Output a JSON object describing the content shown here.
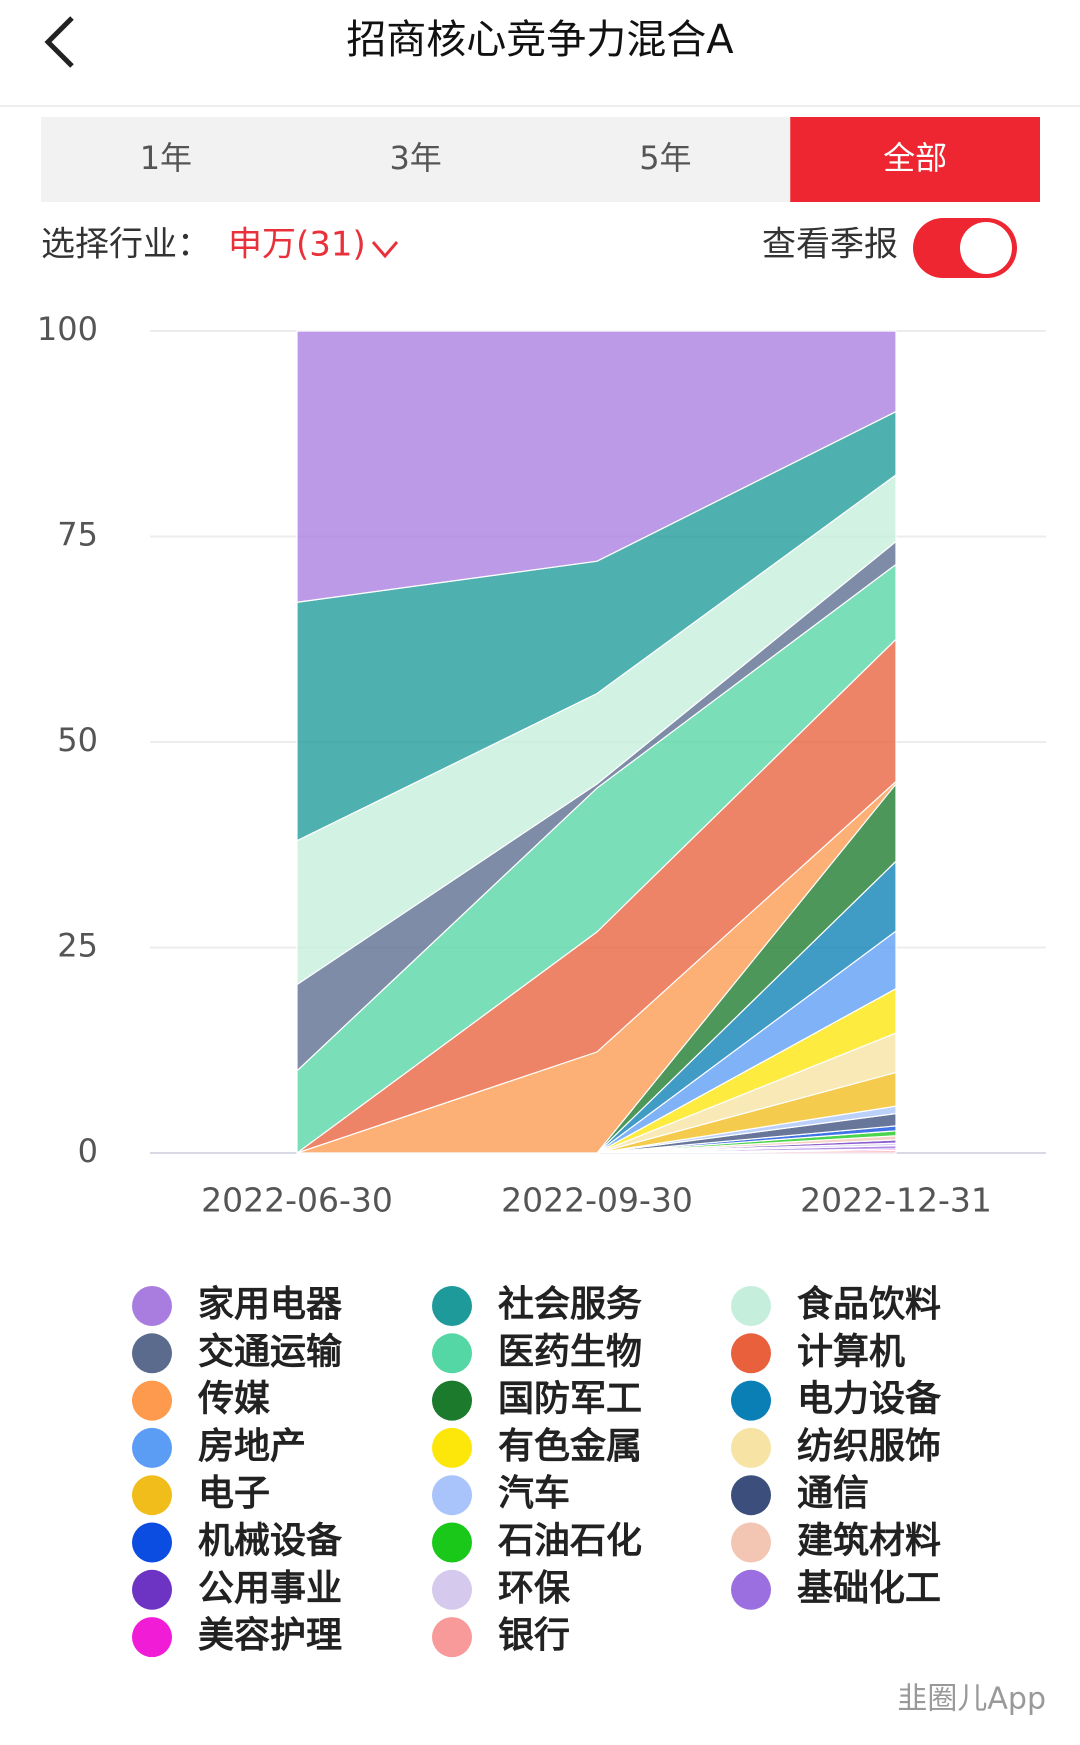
{
  "header": {
    "title": "招商核心竞争力混合A"
  },
  "tabs": {
    "items": [
      "1年",
      "3年",
      "5年",
      "全部"
    ],
    "active": 3
  },
  "filter": {
    "label": "选择行业：",
    "value": "申万(31)"
  },
  "toggle": {
    "label": "查看季报",
    "on": true
  },
  "chart_data": {
    "type": "area",
    "stacked": true,
    "grid": true,
    "categories": [
      "2022-06-30",
      "2022-09-30",
      "2022-12-31"
    ],
    "ylim": [
      0,
      100
    ],
    "yticks": [
      0,
      25,
      50,
      75,
      100
    ],
    "series": [
      {
        "name": "家用电器",
        "color": "#a97de0",
        "values": [
          33,
          28,
          9.8
        ]
      },
      {
        "name": "社会服务",
        "color": "#1e9a9a",
        "values": [
          29,
          16.1,
          7.7
        ]
      },
      {
        "name": "食品饮料",
        "color": "#c5eedd",
        "values": [
          17.5,
          11,
          8.1
        ]
      },
      {
        "name": "交通运输",
        "color": "#5b6b8e",
        "values": [
          10.5,
          0.5,
          2.8
        ]
      },
      {
        "name": "医药生物",
        "color": "#55d6a5",
        "values": [
          10,
          17.5,
          9.1
        ]
      },
      {
        "name": "计算机",
        "color": "#e8603c",
        "values": [
          0,
          14.6,
          17.3
        ]
      },
      {
        "name": "传媒",
        "color": "#fd9a4e",
        "values": [
          0,
          12.3,
          0.3
        ]
      },
      {
        "name": "国防军工",
        "color": "#1b7a2b",
        "values": [
          0,
          0,
          9.4
        ]
      },
      {
        "name": "电力设备",
        "color": "#0a7fb5",
        "values": [
          0,
          0,
          8.5
        ]
      },
      {
        "name": "房地产",
        "color": "#5b9cf5",
        "values": [
          0,
          0,
          7
        ]
      },
      {
        "name": "有色金属",
        "color": "#fde60a",
        "values": [
          0,
          0,
          5.4
        ]
      },
      {
        "name": "纺织服饰",
        "color": "#f7e3a3",
        "values": [
          0,
          0,
          4.8
        ]
      },
      {
        "name": "电子",
        "color": "#f1bd1b",
        "values": [
          0,
          0,
          4.1
        ]
      },
      {
        "name": "汽车",
        "color": "#a9c3fb",
        "values": [
          0,
          0,
          0.9
        ]
      },
      {
        "name": "通信",
        "color": "#3c4f7c",
        "values": [
          0,
          0,
          1.5
        ]
      },
      {
        "name": "机械设备",
        "color": "#0b4de0",
        "values": [
          0,
          0,
          0.6
        ]
      },
      {
        "name": "石油石化",
        "color": "#1ac81a",
        "values": [
          0,
          0,
          0.6
        ]
      },
      {
        "name": "建筑材料",
        "color": "#f3c6b4",
        "values": [
          0,
          0,
          0.5
        ]
      },
      {
        "name": "公用事业",
        "color": "#6d33c2",
        "values": [
          0,
          0,
          0.4
        ]
      },
      {
        "name": "环保",
        "color": "#d6c9ee",
        "values": [
          0,
          0,
          0.3
        ]
      },
      {
        "name": "基础化工",
        "color": "#9b6fe0",
        "values": [
          0,
          0,
          0.4
        ]
      },
      {
        "name": "美容护理",
        "color": "#f01cd6",
        "values": [
          0,
          0,
          0.2
        ]
      },
      {
        "name": "银行",
        "color": "#f99a9a",
        "values": [
          0,
          0,
          0.3
        ]
      }
    ]
  },
  "watermark": "韭圈儿App"
}
